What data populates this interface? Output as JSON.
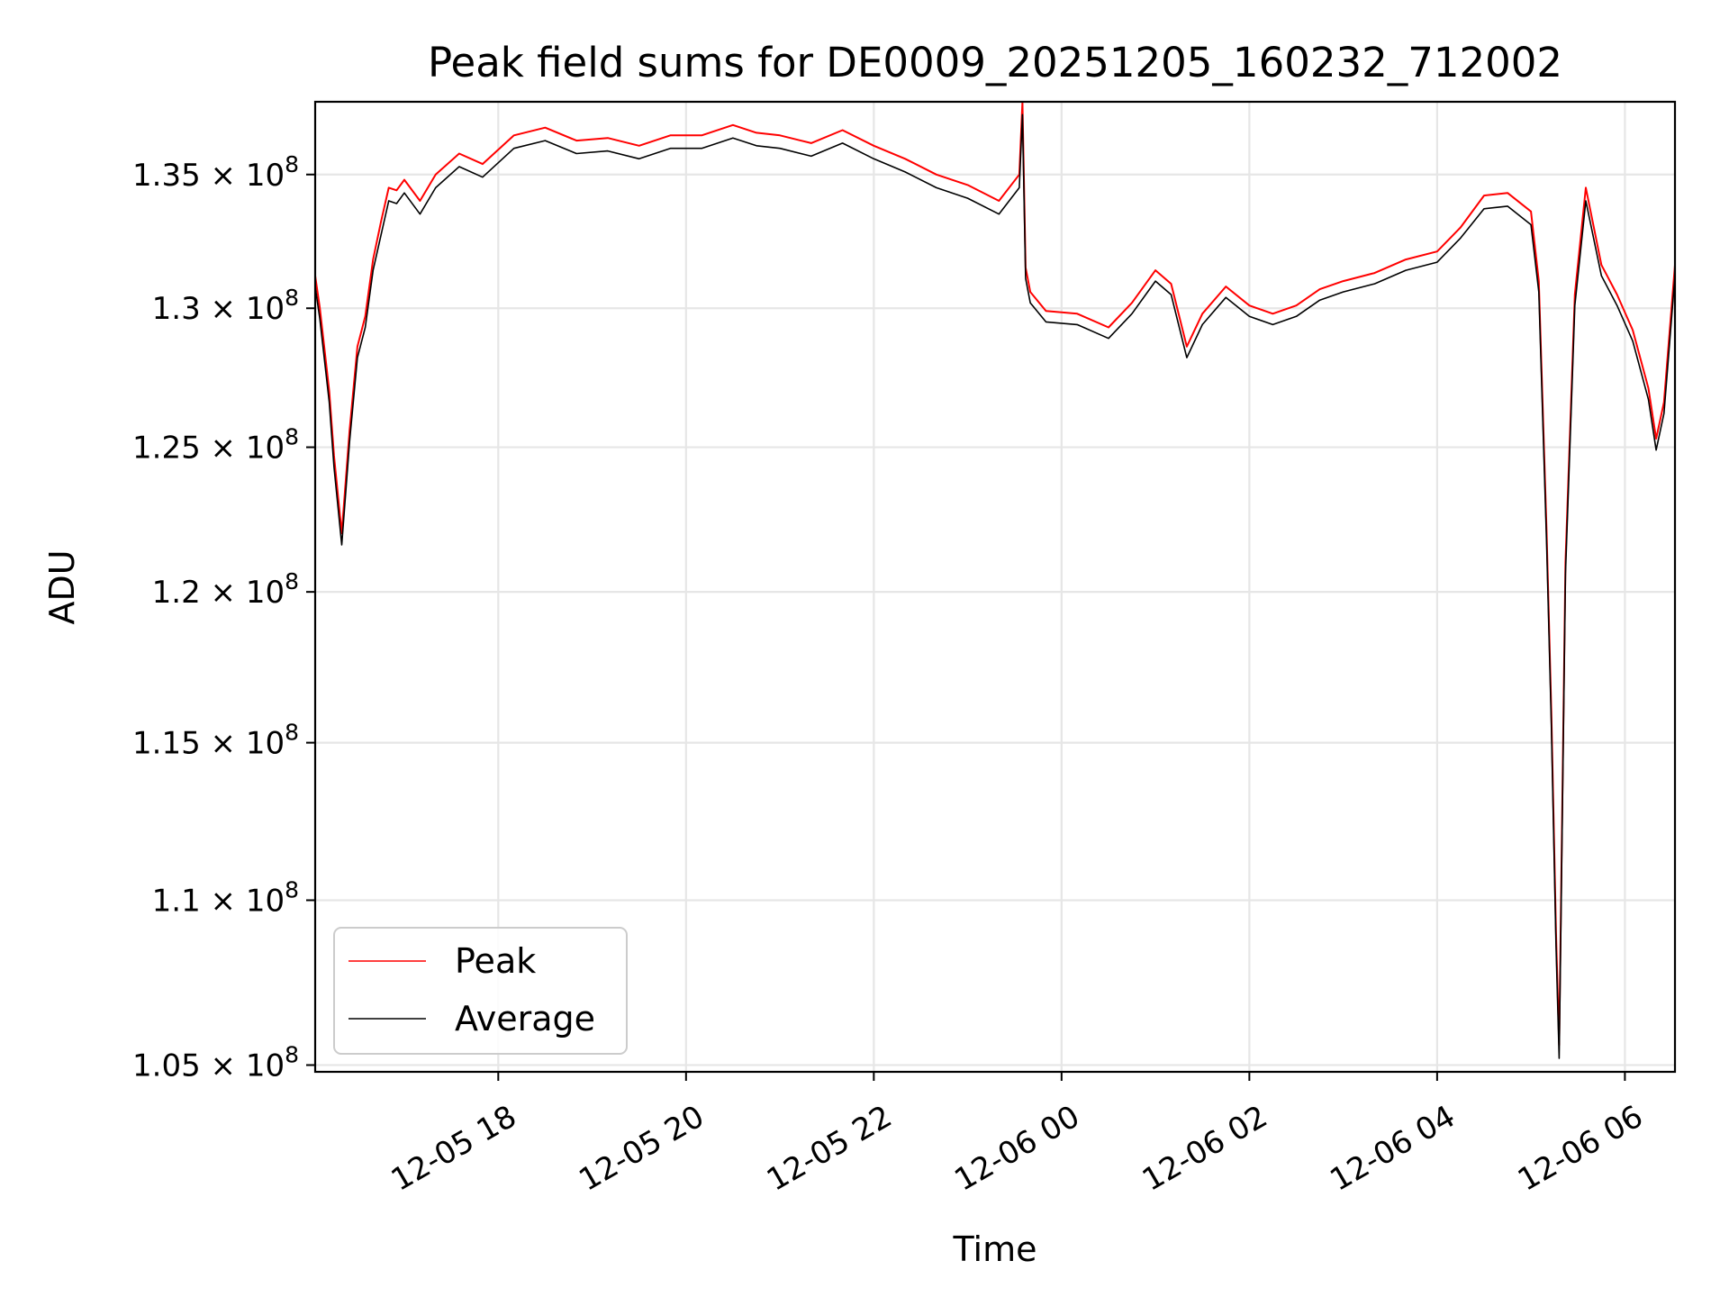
{
  "chart_data": {
    "type": "line",
    "title": "Peak field sums for DE0009_20251205_160232_712002",
    "xlabel": "Time",
    "ylabel": "ADU",
    "y_scale": "log",
    "xlim": [
      "2025-12-05 16:03",
      "2025-12-06 06:32"
    ],
    "ylim": [
      104800000,
      137800000
    ],
    "grid": true,
    "legend_position": "lower-left",
    "x_ticks": [
      {
        "value": "2025-12-05 18:00",
        "label": "12-05 18"
      },
      {
        "value": "2025-12-05 20:00",
        "label": "12-05 20"
      },
      {
        "value": "2025-12-05 22:00",
        "label": "12-05 22"
      },
      {
        "value": "2025-12-06 00:00",
        "label": "12-06 00"
      },
      {
        "value": "2025-12-06 02:00",
        "label": "12-06 02"
      },
      {
        "value": "2025-12-06 04:00",
        "label": "12-06 04"
      },
      {
        "value": "2025-12-06 06:00",
        "label": "12-06 06"
      }
    ],
    "y_ticks": [
      {
        "value": 105000000,
        "mantissa": "1.05"
      },
      {
        "value": 110000000,
        "mantissa": "1.1"
      },
      {
        "value": 115000000,
        "mantissa": "1.15"
      },
      {
        "value": 120000000,
        "mantissa": "1.2"
      },
      {
        "value": 125000000,
        "mantissa": "1.25"
      },
      {
        "value": 130000000,
        "mantissa": "1.3"
      },
      {
        "value": 135000000,
        "mantissa": "1.35"
      }
    ],
    "y_tick_suffix": "× 10",
    "y_tick_exponent": "8",
    "series": [
      {
        "name": "Peak",
        "color": "#ff0000",
        "x": [
          "2025-12-05 16:03",
          "2025-12-05 16:06",
          "2025-12-05 16:12",
          "2025-12-05 16:15",
          "2025-12-05 16:20",
          "2025-12-05 16:25",
          "2025-12-05 16:30",
          "2025-12-05 16:35",
          "2025-12-05 16:40",
          "2025-12-05 16:45",
          "2025-12-05 16:50",
          "2025-12-05 16:55",
          "2025-12-05 17:00",
          "2025-12-05 17:10",
          "2025-12-05 17:20",
          "2025-12-05 17:35",
          "2025-12-05 17:50",
          "2025-12-05 18:10",
          "2025-12-05 18:30",
          "2025-12-05 18:50",
          "2025-12-05 19:10",
          "2025-12-05 19:30",
          "2025-12-05 19:50",
          "2025-12-05 20:10",
          "2025-12-05 20:30",
          "2025-12-05 20:45",
          "2025-12-05 21:00",
          "2025-12-05 21:20",
          "2025-12-05 21:40",
          "2025-12-05 22:00",
          "2025-12-05 22:20",
          "2025-12-05 22:40",
          "2025-12-05 23:00",
          "2025-12-05 23:20",
          "2025-12-05 23:33",
          "2025-12-05 23:35",
          "2025-12-05 23:37",
          "2025-12-05 23:40",
          "2025-12-05 23:50",
          "2025-12-06 00:10",
          "2025-12-06 00:30",
          "2025-12-06 00:45",
          "2025-12-06 01:00",
          "2025-12-06 01:10",
          "2025-12-06 01:20",
          "2025-12-06 01:30",
          "2025-12-06 01:45",
          "2025-12-06 02:00",
          "2025-12-06 02:15",
          "2025-12-06 02:30",
          "2025-12-06 02:45",
          "2025-12-06 03:00",
          "2025-12-06 03:20",
          "2025-12-06 03:40",
          "2025-12-06 04:00",
          "2025-12-06 04:15",
          "2025-12-06 04:30",
          "2025-12-06 04:45",
          "2025-12-06 05:00",
          "2025-12-06 05:05",
          "2025-12-06 05:10",
          "2025-12-06 05:13",
          "2025-12-06 05:16",
          "2025-12-06 05:18",
          "2025-12-06 05:22",
          "2025-12-06 05:28",
          "2025-12-06 05:35",
          "2025-12-06 05:45",
          "2025-12-06 05:55",
          "2025-12-06 06:05",
          "2025-12-06 06:15",
          "2025-12-06 06:20",
          "2025-12-06 06:25",
          "2025-12-06 06:32"
        ],
        "values": [
          131200000,
          130000000,
          127000000,
          124700000,
          122000000,
          125600000,
          128600000,
          129700000,
          131800000,
          133200000,
          134500000,
          134400000,
          134800000,
          134000000,
          135000000,
          135800000,
          135400000,
          136500000,
          136800000,
          136300000,
          136400000,
          136100000,
          136500000,
          136500000,
          136900000,
          136600000,
          136500000,
          136200000,
          136700000,
          136100000,
          135600000,
          135000000,
          134600000,
          134000000,
          135000000,
          137800000,
          131500000,
          130600000,
          129900000,
          129800000,
          129300000,
          130200000,
          131400000,
          130900000,
          128600000,
          129800000,
          130800000,
          130100000,
          129800000,
          130100000,
          130700000,
          131000000,
          131300000,
          131800000,
          132100000,
          133000000,
          134200000,
          134300000,
          133600000,
          131000000,
          122000000,
          116000000,
          109000000,
          105600000,
          121000000,
          130500000,
          134500000,
          131600000,
          130500000,
          129200000,
          127100000,
          125300000,
          126600000,
          131600000
        ]
      },
      {
        "name": "Average",
        "color": "#000000",
        "x": [
          "2025-12-05 16:03",
          "2025-12-05 16:06",
          "2025-12-05 16:12",
          "2025-12-05 16:15",
          "2025-12-05 16:20",
          "2025-12-05 16:25",
          "2025-12-05 16:30",
          "2025-12-05 16:35",
          "2025-12-05 16:40",
          "2025-12-05 16:45",
          "2025-12-05 16:50",
          "2025-12-05 16:55",
          "2025-12-05 17:00",
          "2025-12-05 17:10",
          "2025-12-05 17:20",
          "2025-12-05 17:35",
          "2025-12-05 17:50",
          "2025-12-05 18:10",
          "2025-12-05 18:30",
          "2025-12-05 18:50",
          "2025-12-05 19:10",
          "2025-12-05 19:30",
          "2025-12-05 19:50",
          "2025-12-05 20:10",
          "2025-12-05 20:30",
          "2025-12-05 20:45",
          "2025-12-05 21:00",
          "2025-12-05 21:20",
          "2025-12-05 21:40",
          "2025-12-05 22:00",
          "2025-12-05 22:20",
          "2025-12-05 22:40",
          "2025-12-05 23:00",
          "2025-12-05 23:20",
          "2025-12-05 23:33",
          "2025-12-05 23:35",
          "2025-12-05 23:37",
          "2025-12-05 23:40",
          "2025-12-05 23:50",
          "2025-12-06 00:10",
          "2025-12-06 00:30",
          "2025-12-06 00:45",
          "2025-12-06 01:00",
          "2025-12-06 01:10",
          "2025-12-06 01:20",
          "2025-12-06 01:30",
          "2025-12-06 01:45",
          "2025-12-06 02:00",
          "2025-12-06 02:15",
          "2025-12-06 02:30",
          "2025-12-06 02:45",
          "2025-12-06 03:00",
          "2025-12-06 03:20",
          "2025-12-06 03:40",
          "2025-12-06 04:00",
          "2025-12-06 04:15",
          "2025-12-06 04:30",
          "2025-12-06 04:45",
          "2025-12-06 05:00",
          "2025-12-06 05:05",
          "2025-12-06 05:10",
          "2025-12-06 05:13",
          "2025-12-06 05:16",
          "2025-12-06 05:18",
          "2025-12-06 05:22",
          "2025-12-06 05:28",
          "2025-12-06 05:35",
          "2025-12-06 05:45",
          "2025-12-06 05:55",
          "2025-12-06 06:05",
          "2025-12-06 06:15",
          "2025-12-06 06:20",
          "2025-12-06 06:25",
          "2025-12-06 06:32"
        ],
        "values": [
          130800000,
          129600000,
          126600000,
          124300000,
          121600000,
          125200000,
          128200000,
          129300000,
          131400000,
          132700000,
          134000000,
          133900000,
          134300000,
          133500000,
          134500000,
          135300000,
          134900000,
          136000000,
          136300000,
          135800000,
          135900000,
          135600000,
          136000000,
          136000000,
          136400000,
          136100000,
          136000000,
          135700000,
          136200000,
          135600000,
          135100000,
          134500000,
          134100000,
          133500000,
          134500000,
          137300000,
          131100000,
          130200000,
          129500000,
          129400000,
          128900000,
          129800000,
          131000000,
          130500000,
          128200000,
          129400000,
          130400000,
          129700000,
          129400000,
          129700000,
          130300000,
          130600000,
          130900000,
          131400000,
          131700000,
          132600000,
          133700000,
          133800000,
          133100000,
          130600000,
          121600000,
          115600000,
          108600000,
          105200000,
          120600000,
          130100000,
          134000000,
          131200000,
          130100000,
          128800000,
          126700000,
          124900000,
          126200000,
          131200000
        ]
      }
    ]
  }
}
